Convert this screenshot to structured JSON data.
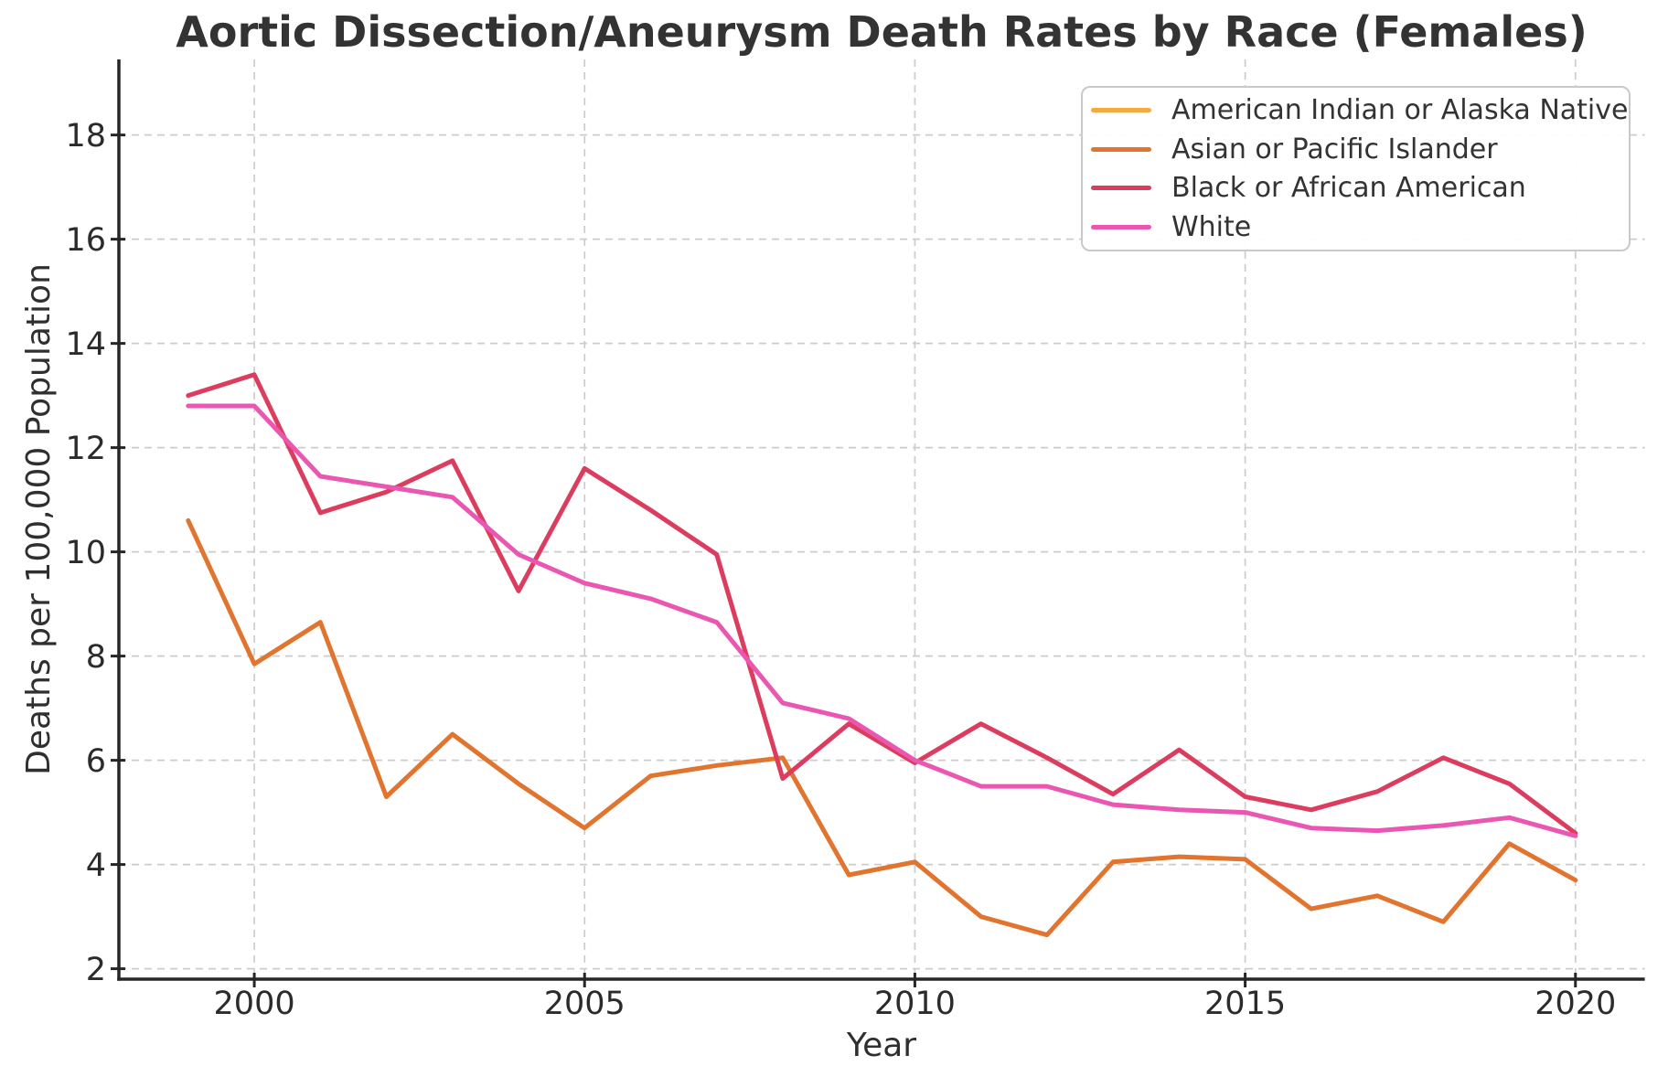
{
  "figure": {
    "background_color": "#ffffff"
  },
  "chart_data": {
    "type": "line",
    "title": "Aortic Dissection/Aneurysm Death Rates by Race (Females)",
    "xlabel": "Year",
    "ylabel": "Deaths per 100,000 Population",
    "grid": true,
    "grid_style": "dashed",
    "legend_position": "upper right",
    "xlim": [
      1997.95,
      2021.05
    ],
    "ylim": [
      1.8,
      19.45
    ],
    "xticks": [
      2000,
      2005,
      2010,
      2015,
      2020
    ],
    "yticks": [
      2,
      4,
      6,
      8,
      10,
      12,
      14,
      16,
      18
    ],
    "x": [
      1999,
      2000,
      2001,
      2002,
      2003,
      2004,
      2005,
      2006,
      2007,
      2008,
      2009,
      2010,
      2011,
      2012,
      2013,
      2014,
      2015,
      2016,
      2017,
      2018,
      2019,
      2020
    ],
    "series": [
      {
        "name": "American Indian or Alaska Native",
        "color": "#f3ab3f",
        "plotted": false,
        "values": []
      },
      {
        "name": "Asian or Pacific Islander",
        "color": "#e1752f",
        "plotted": true,
        "values": [
          10.6,
          7.85,
          8.65,
          5.3,
          6.5,
          5.55,
          4.7,
          5.7,
          5.9,
          6.05,
          3.8,
          4.05,
          3.0,
          2.65,
          4.05,
          4.15,
          4.1,
          3.15,
          3.4,
          2.9,
          4.4,
          3.7
        ]
      },
      {
        "name": "Black or African American",
        "color": "#dc3d5e",
        "plotted": true,
        "values": [
          13.0,
          13.4,
          10.75,
          11.15,
          11.75,
          9.25,
          11.6,
          10.8,
          9.95,
          5.65,
          6.7,
          5.95,
          6.7,
          6.05,
          5.35,
          6.2,
          5.3,
          5.05,
          5.4,
          6.05,
          5.55,
          4.6
        ]
      },
      {
        "name": "White",
        "color": "#e957b2",
        "plotted": true,
        "values": [
          12.8,
          12.8,
          11.45,
          11.25,
          11.05,
          9.95,
          9.4,
          9.1,
          8.65,
          7.1,
          6.8,
          6.0,
          5.5,
          5.5,
          5.15,
          5.05,
          5.0,
          4.7,
          4.65,
          4.75,
          4.9,
          4.55
        ]
      }
    ],
    "styles": {
      "grid_color": "#cccccc",
      "spine_color": "#262626",
      "tick_color": "#262626",
      "text_color": "#2b2b2b",
      "line_width": 5
    }
  }
}
